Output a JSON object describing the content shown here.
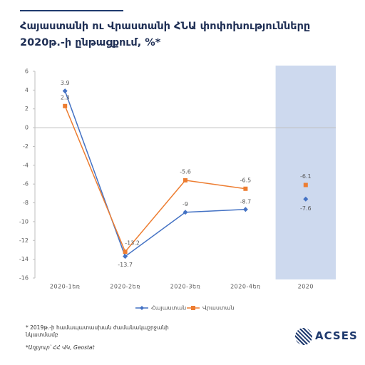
{
  "chart_data": {
    "type": "line",
    "title": "Հայաստանի ու Վրաստանի ՀՆԱ փոփոխությունները 2020թ.-ի ընթացքում, %*",
    "categories": [
      "2020-1եռ",
      "2020-2եռ",
      "2020-3եռ",
      "2020-4եռ",
      "2020"
    ],
    "series": [
      {
        "name": "Հայաստան",
        "color": "#4472c4",
        "marker": "diamond",
        "values": [
          3.9,
          -13.7,
          -9,
          -8.7,
          -7.6
        ]
      },
      {
        "name": "Վրաստան",
        "color": "#ed7d31",
        "marker": "square",
        "values": [
          2.3,
          -13.2,
          -5.6,
          -6.5,
          -6.1
        ]
      }
    ],
    "ylim": [
      -16,
      6
    ],
    "yticks": [
      6,
      4,
      2,
      0,
      -2,
      -4,
      -6,
      -8,
      -10,
      -12,
      -14,
      -16
    ],
    "last_category_separate": true,
    "last_category_shade": "#cdd9ee",
    "legend": "bottom",
    "footnotes": [
      "* 2019թ.-ի համապատասխան ժամանակաշրջանի նկատմամբ",
      "*Աղբյուր՝ ՀՀ ՎԿ, Geostat"
    ],
    "logo": "ACSES"
  }
}
